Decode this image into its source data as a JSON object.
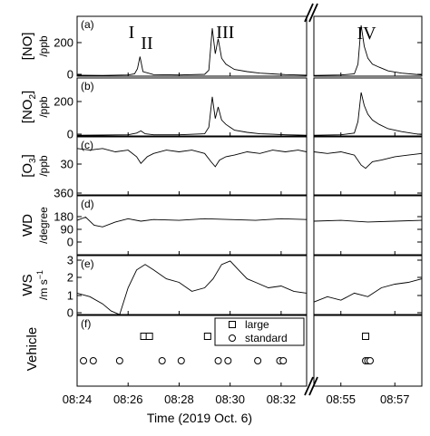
{
  "chart_data": {
    "type": "line",
    "xlabel": "Time (2019 Oct. 6)",
    "x_segments": [
      {
        "start": "08:24",
        "end": "08:33:00",
        "ticks": [
          "08:24",
          "08:26",
          "08:28",
          "08:30",
          "08:32"
        ]
      },
      {
        "start": "08:54:00",
        "end": "08:58:00",
        "ticks": [
          "08:55",
          "08:57"
        ]
      }
    ],
    "panels": [
      {
        "id": "a",
        "label": "(a)",
        "ylabel_main": "[NO]",
        "ylabel_unit": "/ppb",
        "ylim": [
          0,
          400
        ],
        "yticks": [
          "0",
          "200"
        ],
        "annotations": [
          {
            "text": "I",
            "time": "08:26:25"
          },
          {
            "text": "II",
            "time": "08:26:40"
          },
          {
            "text": "III",
            "time": "08:29:40"
          },
          {
            "text": "IV",
            "time": "08:55:45"
          }
        ],
        "series": [
          {
            "time": [
              "08:24:00",
              "08:25:00",
              "08:26:00",
              "08:26:15",
              "08:26:22",
              "08:26:28",
              "08:26:35",
              "08:27:00",
              "08:28:00",
              "08:29:00",
              "08:29:10",
              "08:29:18",
              "08:29:25",
              "08:29:32",
              "08:29:40",
              "08:29:50",
              "08:30:10",
              "08:30:40",
              "08:31:10",
              "08:31:40",
              "08:32:10",
              "08:32:40",
              "08:33:00"
            ],
            "values": [
              6,
              5,
              8,
              15,
              50,
              130,
              30,
              10,
              8,
              12,
              40,
              320,
              150,
              250,
              120,
              80,
              45,
              30,
              20,
              15,
              10,
              8,
              6
            ]
          },
          {
            "time": [
              "08:54:00",
              "08:55:00",
              "08:55:30",
              "08:55:38",
              "08:55:45",
              "08:55:52",
              "08:56:00",
              "08:56:10",
              "08:56:25",
              "08:56:45",
              "08:57:15",
              "08:57:45",
              "08:58:00"
            ],
            "values": [
              5,
              8,
              15,
              80,
              340,
              200,
              120,
              80,
              60,
              35,
              20,
              12,
              8
            ]
          }
        ]
      },
      {
        "id": "b",
        "label": "(b)",
        "ylabel_main": "[NO2]",
        "ylabel_unit": "/ppb",
        "ylim": [
          0,
          400
        ],
        "yticks": [
          "0",
          "200"
        ],
        "series": [
          {
            "time": [
              "08:24:00",
              "08:25:00",
              "08:26:00",
              "08:26:20",
              "08:26:30",
              "08:26:40",
              "08:27:00",
              "08:28:00",
              "08:29:00",
              "08:29:10",
              "08:29:18",
              "08:29:25",
              "08:29:32",
              "08:29:40",
              "08:29:50",
              "08:30:10",
              "08:30:40",
              "08:31:10",
              "08:31:40",
              "08:32:10",
              "08:32:40",
              "08:33:00"
            ],
            "values": [
              5,
              6,
              8,
              20,
              35,
              15,
              8,
              8,
              15,
              60,
              270,
              120,
              200,
              110,
              80,
              40,
              25,
              15,
              12,
              8,
              6,
              5
            ]
          },
          {
            "time": [
              "08:54:00",
              "08:55:00",
              "08:55:30",
              "08:55:38",
              "08:55:45",
              "08:55:52",
              "08:56:00",
              "08:56:10",
              "08:56:25",
              "08:56:45",
              "08:57:15",
              "08:57:45",
              "08:58:00"
            ],
            "values": [
              5,
              8,
              20,
              100,
              300,
              210,
              150,
              110,
              80,
              50,
              30,
              15,
              10
            ]
          }
        ]
      },
      {
        "id": "c",
        "label": "(c)",
        "ylabel_main": "[O3]",
        "ylabel_unit": "/ppb",
        "ylim": [
          10,
          45
        ],
        "yticks": [
          "30"
        ],
        "series": [
          {
            "time": [
              "08:24:00",
              "08:24:30",
              "08:25:00",
              "08:25:30",
              "08:26:00",
              "08:26:20",
              "08:26:30",
              "08:26:45",
              "08:27:00",
              "08:27:30",
              "08:28:00",
              "08:28:30",
              "08:29:00",
              "08:29:15",
              "08:29:25",
              "08:29:35",
              "08:29:50",
              "08:30:10",
              "08:30:40",
              "08:31:10",
              "08:31:40",
              "08:32:10",
              "08:32:40",
              "08:33:00"
            ],
            "values": [
              38,
              37,
              38,
              36,
              37,
              33,
              29,
              33,
              35,
              37,
              36,
              37,
              35,
              30,
              27,
              31,
              33,
              34,
              36,
              35,
              37,
              36,
              37,
              36
            ]
          },
          {
            "time": [
              "08:54:00",
              "08:54:30",
              "08:55:00",
              "08:55:30",
              "08:55:45",
              "08:55:55",
              "08:56:10",
              "08:56:30",
              "08:57:00",
              "08:57:30",
              "08:58:00"
            ],
            "values": [
              36,
              35,
              36,
              34,
              28,
              26,
              30,
              31,
              33,
              34,
              35
            ]
          }
        ]
      },
      {
        "id": "d",
        "label": "(d)",
        "ylabel_main": "WD",
        "ylabel_unit": "/degree",
        "ylim": [
          0,
          360
        ],
        "yticks": [
          "0",
          "90",
          "180",
          "360"
        ],
        "series": [
          {
            "time": [
              "08:24:00",
              "08:24:20",
              "08:24:40",
              "08:25:00",
              "08:25:30",
              "08:26:00",
              "08:26:30",
              "08:27:00",
              "08:28:00",
              "08:29:00",
              "08:30:00",
              "08:31:00",
              "08:32:00",
              "08:33:00"
            ],
            "values": [
              210,
              230,
              180,
              170,
              200,
              220,
              205,
              215,
              210,
              220,
              215,
              210,
              220,
              215
            ]
          },
          {
            "time": [
              "08:54:00",
              "08:55:00",
              "08:56:00",
              "08:57:00",
              "08:58:00"
            ],
            "values": [
              205,
              210,
              200,
              205,
              210
            ]
          }
        ]
      },
      {
        "id": "e",
        "label": "(e)",
        "ylabel_main": "WS",
        "ylabel_unit": "/m s-1",
        "ylim": [
          0,
          3.3
        ],
        "yticks": [
          "0",
          "1",
          "2",
          "3"
        ],
        "series": [
          {
            "time": [
              "08:24:00",
              "08:24:30",
              "08:25:00",
              "08:25:20",
              "08:25:40",
              "08:26:00",
              "08:26:20",
              "08:26:40",
              "08:27:00",
              "08:27:30",
              "08:28:00",
              "08:28:30",
              "08:29:00",
              "08:29:20",
              "08:29:40",
              "08:30:00",
              "08:30:20",
              "08:30:40",
              "08:31:00",
              "08:31:30",
              "08:32:00",
              "08:32:30",
              "08:33:00"
            ],
            "values": [
              1.2,
              1.0,
              0.6,
              0.2,
              0.0,
              1.5,
              2.5,
              2.8,
              2.5,
              2.0,
              1.8,
              1.3,
              1.5,
              2.0,
              2.8,
              3.0,
              2.5,
              2.0,
              1.8,
              1.5,
              1.6,
              1.3,
              1.2
            ]
          },
          {
            "time": [
              "08:54:00",
              "08:54:30",
              "08:55:00",
              "08:55:30",
              "08:56:00",
              "08:56:30",
              "08:57:00",
              "08:57:30",
              "08:58:00"
            ],
            "values": [
              0.7,
              1.0,
              0.8,
              1.2,
              1.0,
              1.5,
              1.7,
              1.8,
              2.0
            ]
          }
        ]
      },
      {
        "id": "f",
        "label": "(f)",
        "ylabel_main": "Vehicle",
        "legend": {
          "placement": "top-right",
          "entries": [
            "large",
            "standard"
          ]
        },
        "large": [
          "08:26:37",
          "08:26:50",
          "08:29:07",
          "08:55:55"
        ],
        "standard": [
          "08:24:15",
          "08:24:38",
          "08:25:40",
          "08:27:20",
          "08:28:05",
          "08:29:32",
          "08:29:55",
          "08:31:05",
          "08:31:57",
          "08:32:05",
          "08:55:55",
          "08:56:00",
          "08:56:05"
        ]
      }
    ]
  }
}
